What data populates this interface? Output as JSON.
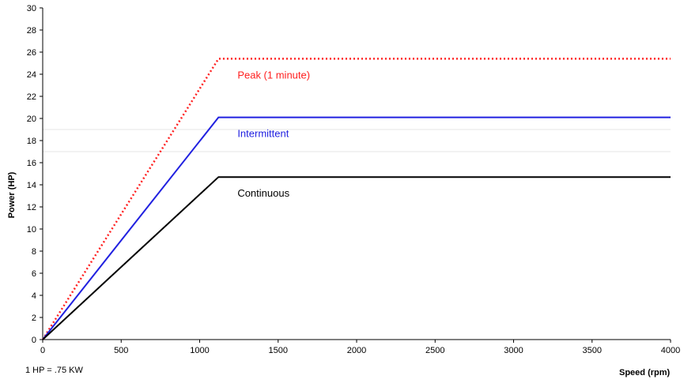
{
  "chart_data": {
    "type": "line",
    "title": "",
    "xlabel": "Speed (rpm)",
    "ylabel": "Power (HP)",
    "xlim": [
      0,
      4000
    ],
    "ylim": [
      0,
      30
    ],
    "xticks": [
      "0",
      "500",
      "1000",
      "1500",
      "2000",
      "2500",
      "3000",
      "3500",
      "4000"
    ],
    "yticks": [
      "0",
      "2",
      "4",
      "6",
      "8",
      "10",
      "12",
      "14",
      "16",
      "18",
      "20",
      "22",
      "24",
      "26",
      "28",
      "30"
    ],
    "grid": false,
    "legend": "inline labels",
    "note": "1 HP = .75 KW",
    "series": [
      {
        "name": "Peak (1 minute)",
        "color": "#ff2020",
        "style": "dotted",
        "points": [
          [
            0,
            0
          ],
          [
            1120,
            25.4
          ],
          [
            4000,
            25.4
          ]
        ]
      },
      {
        "name": "Intermittent",
        "color": "#2020e0",
        "style": "solid",
        "points": [
          [
            0,
            0
          ],
          [
            1120,
            20.1
          ],
          [
            4000,
            20.1
          ]
        ]
      },
      {
        "name": "Continuous",
        "color": "#000000",
        "style": "solid",
        "points": [
          [
            0,
            0
          ],
          [
            1120,
            14.7
          ],
          [
            4000,
            14.7
          ]
        ]
      }
    ]
  }
}
